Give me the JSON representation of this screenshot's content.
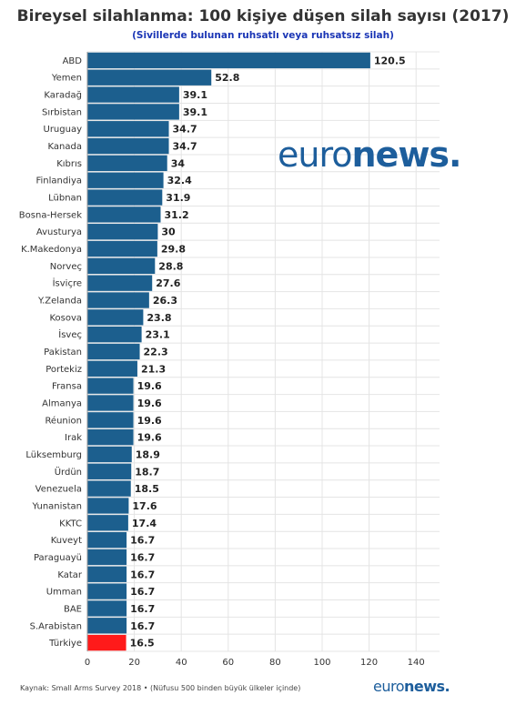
{
  "chart_data": {
    "type": "bar",
    "orientation": "horizontal",
    "title": "Bireysel silahlanma: 100 kişiye düşen silah sayısı (2017)",
    "subtitle": "(Sivillerde bulunan ruhsatlı veya ruhsatsız silah)",
    "categories": [
      "ABD",
      "Yemen",
      "Karadağ",
      "Sırbistan",
      "Uruguay",
      "Kanada",
      "Kıbrıs",
      "Finlandiya",
      "Lübnan",
      "Bosna-Hersek",
      "Avusturya",
      "K.Makedonya",
      "Norveç",
      "İsviçre",
      "Y.Zelanda",
      "Kosova",
      "İsveç",
      "Pakistan",
      "Portekiz",
      "Fransa",
      "Almanya",
      "Réunion",
      "Irak",
      "Lüksemburg",
      "Ürdün",
      "Venezuela",
      "Yunanistan",
      "KKTC",
      "Kuveyt",
      "Paraguayü",
      "Katar",
      "Umman",
      "BAE",
      "S.Arabistan",
      "Türkiye"
    ],
    "values": [
      120.5,
      52.8,
      39.1,
      39.1,
      34.7,
      34.7,
      34,
      32.4,
      31.9,
      31.2,
      30,
      29.8,
      28.8,
      27.6,
      26.3,
      23.8,
      23.1,
      22.3,
      21.3,
      19.6,
      19.6,
      19.6,
      19.6,
      18.9,
      18.7,
      18.5,
      17.6,
      17.4,
      16.7,
      16.7,
      16.7,
      16.7,
      16.7,
      16.7,
      16.5
    ],
    "value_labels": [
      "120.5",
      "52.8",
      "39.1",
      "39.1",
      "34.7",
      "34.7",
      "34",
      "32.4",
      "31.9",
      "31.2",
      "30",
      "29.8",
      "28.8",
      "27.6",
      "26.3",
      "23.8",
      "23.1",
      "22.3",
      "21.3",
      "19.6",
      "19.6",
      "19.6",
      "19.6",
      "18.9",
      "18.7",
      "18.5",
      "17.6",
      "17.4",
      "16.7",
      "16.7",
      "16.7",
      "16.7",
      "16.7",
      "16.7",
      "16.5"
    ],
    "xlim": [
      0,
      150
    ],
    "xticks": [
      0,
      20,
      40,
      60,
      80,
      100,
      120,
      140
    ],
    "xtick_labels": [
      "0",
      "20",
      "40",
      "60",
      "80",
      "100",
      "120",
      "140"
    ],
    "grid": true,
    "highlight_category": "Türkiye",
    "colors": {
      "bar": "#1c5f8e",
      "highlight": "#ff1a1a",
      "grid": "#e4e4e4",
      "subtitle": "#1a35b5",
      "brand": "#1d5e9c"
    }
  },
  "watermark": {
    "prefix": "euro",
    "suffix": "news."
  },
  "footer": {
    "source": "Kaynak: Small Arms Survey 2018 • (Nüfusu 500 binden büyük ülkeler içinde)",
    "logo_prefix": "euro",
    "logo_suffix": "news."
  }
}
